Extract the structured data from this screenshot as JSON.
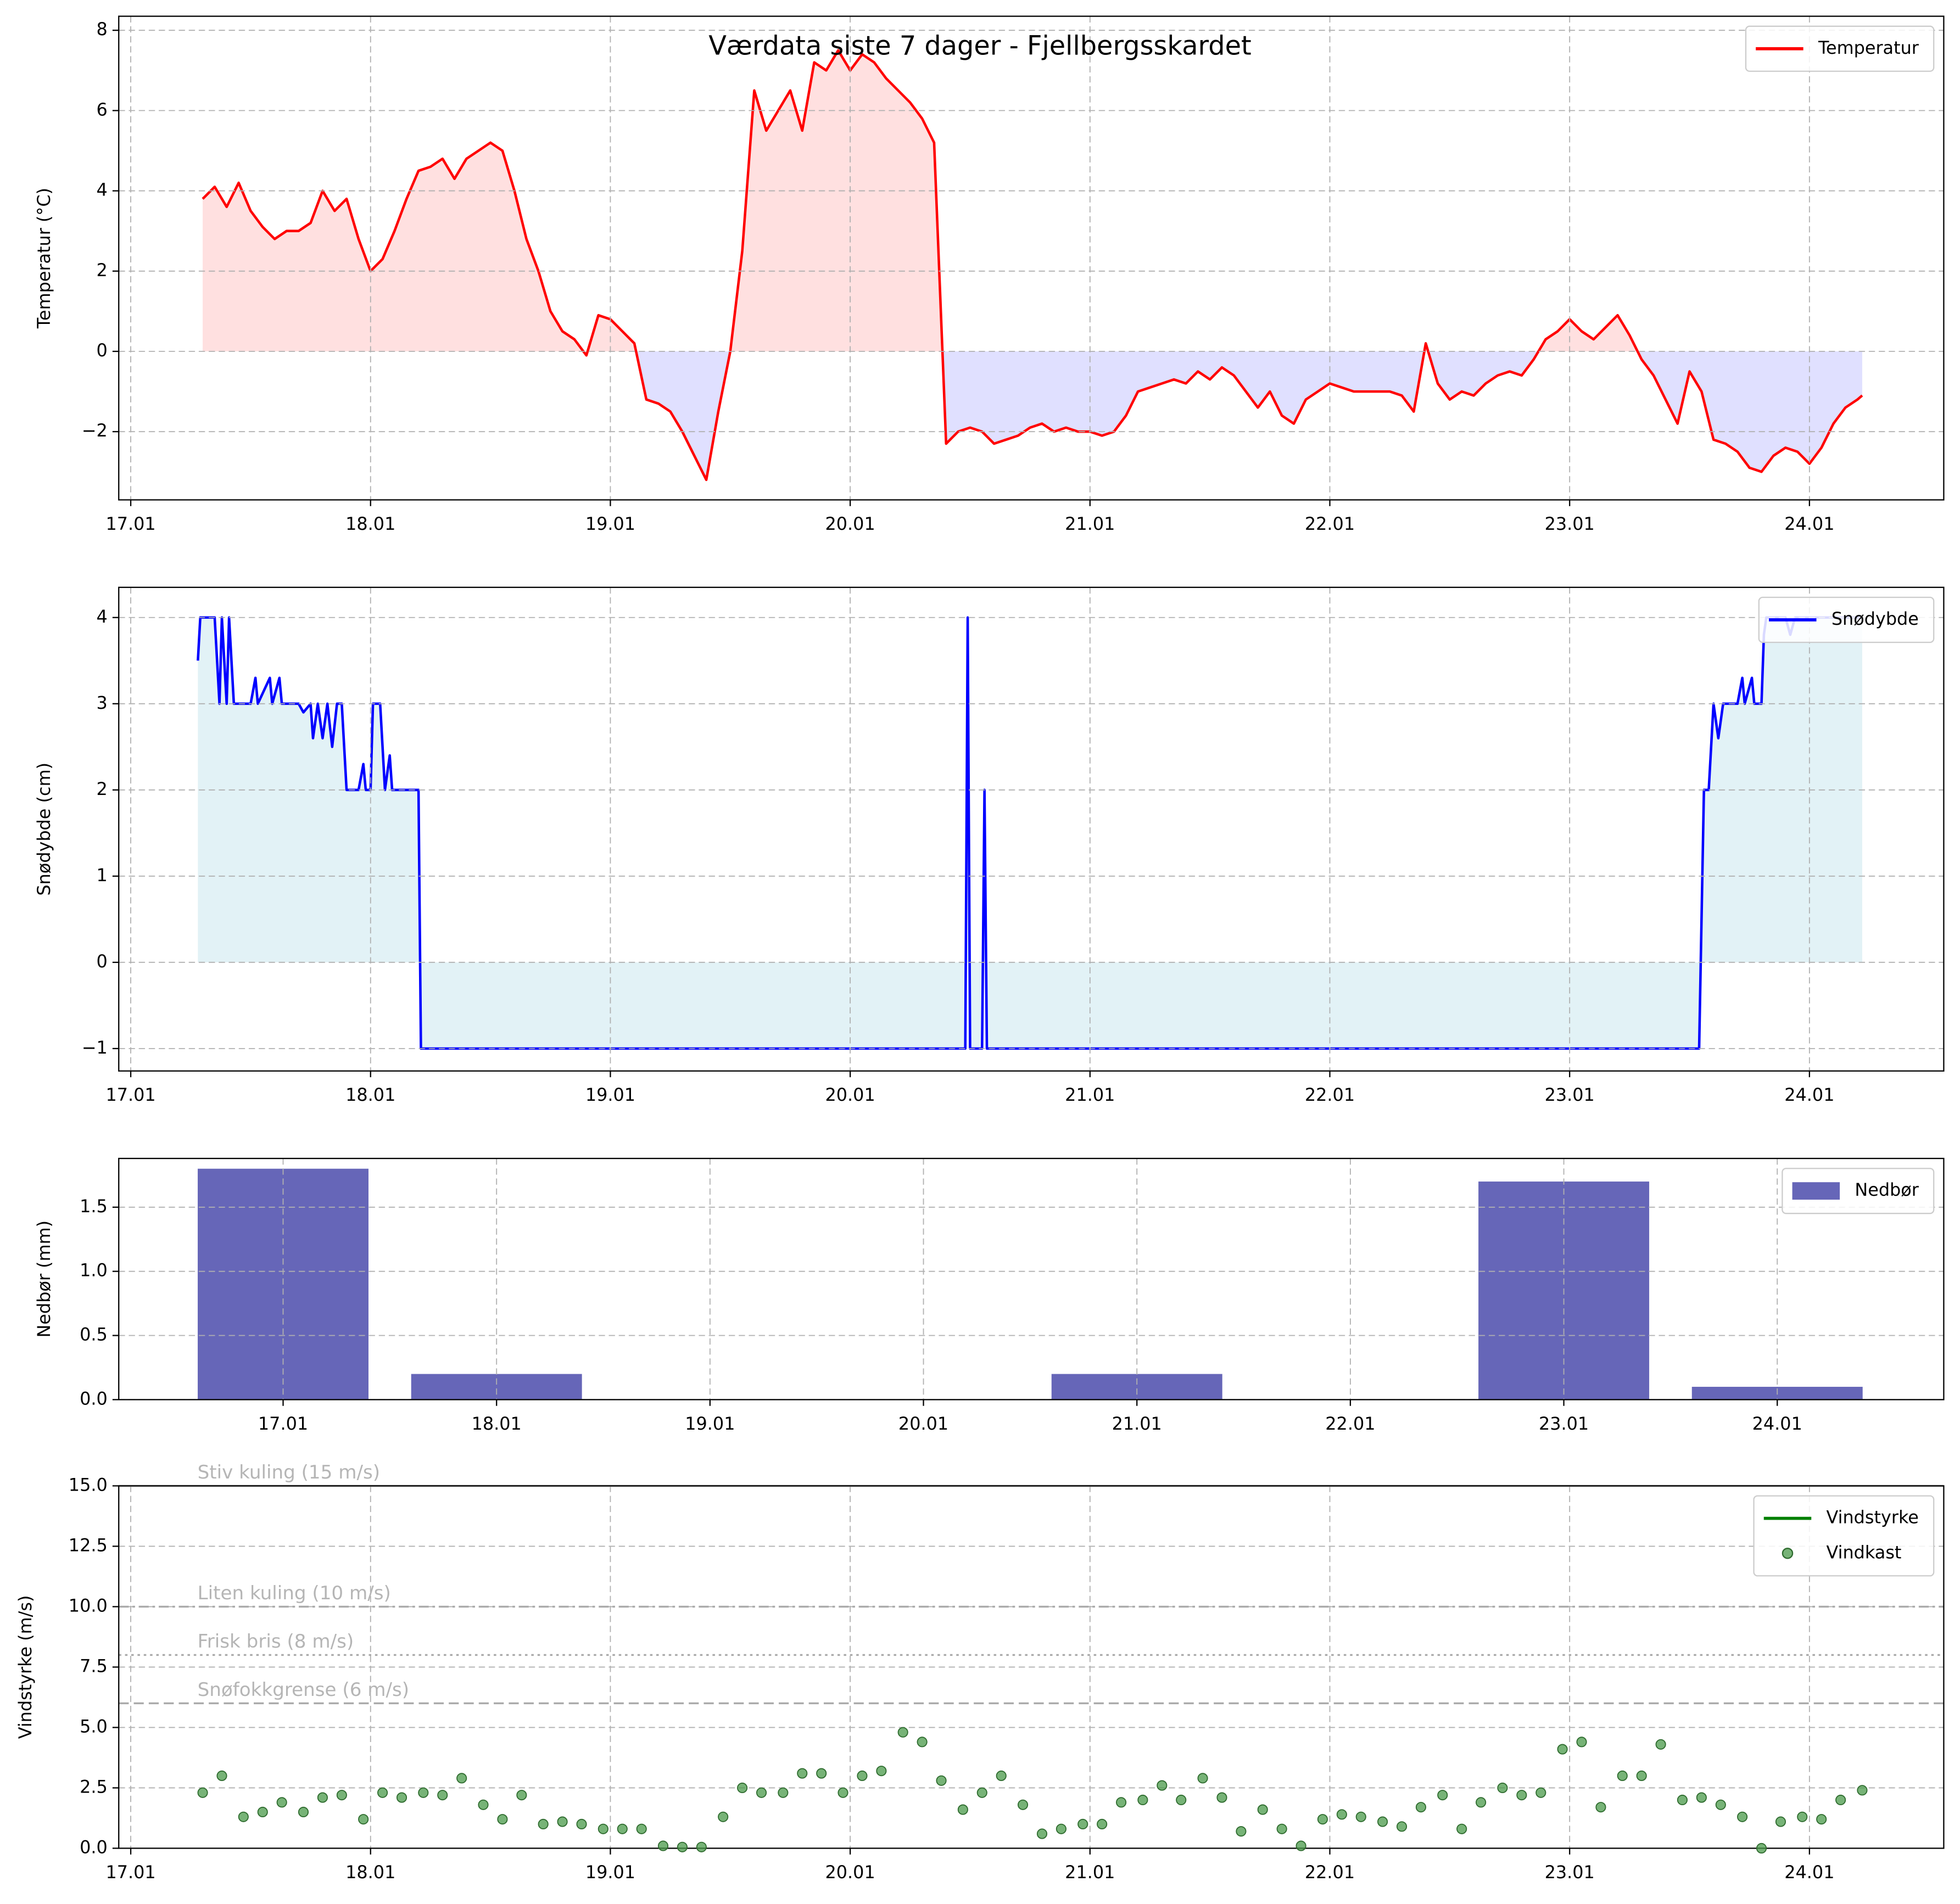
{
  "title": "Værdata siste 7 dager - Fjellbergsskardet",
  "chart_data": [
    {
      "type": "line",
      "ylabel": "Temperatur (°C)",
      "grid": true,
      "legend": "upper right",
      "fill_above_color": "#ffe0e0",
      "fill_below_color": "#e0e0ff",
      "xlim": [
        16.95,
        24.56
      ],
      "ylim": [
        -3.7,
        8.35
      ],
      "xticks": [
        {
          "value": 17,
          "label": "17.01"
        },
        {
          "value": 18,
          "label": "18.01"
        },
        {
          "value": 19,
          "label": "19.01"
        },
        {
          "value": 20,
          "label": "20.01"
        },
        {
          "value": 21,
          "label": "21.01"
        },
        {
          "value": 22,
          "label": "22.01"
        },
        {
          "value": 23,
          "label": "23.01"
        },
        {
          "value": 24,
          "label": "24.01"
        }
      ],
      "yticks": [
        {
          "value": -2,
          "label": "−2"
        },
        0,
        2,
        4,
        6,
        8
      ],
      "x": [
        17.3,
        17.35,
        17.4,
        17.45,
        17.5,
        17.55,
        17.6,
        17.65,
        17.7,
        17.75,
        17.8,
        17.85,
        17.9,
        17.95,
        18,
        18.05,
        18.1,
        18.15,
        18.2,
        18.25,
        18.3,
        18.35,
        18.4,
        18.45,
        18.5,
        18.55,
        18.6,
        18.65,
        18.7,
        18.75,
        18.8,
        18.85,
        18.9,
        18.95,
        19,
        19.05,
        19.1,
        19.15,
        19.2,
        19.25,
        19.3,
        19.35,
        19.4,
        19.45,
        19.5,
        19.55,
        19.6,
        19.65,
        19.7,
        19.75,
        19.8,
        19.85,
        19.9,
        19.95,
        20,
        20.05,
        20.1,
        20.15,
        20.2,
        20.25,
        20.3,
        20.35,
        20.4,
        20.45,
        20.5,
        20.55,
        20.6,
        20.65,
        20.7,
        20.75,
        20.8,
        20.85,
        20.9,
        20.95,
        21,
        21.05,
        21.1,
        21.15,
        21.2,
        21.25,
        21.3,
        21.35,
        21.4,
        21.45,
        21.5,
        21.55,
        21.6,
        21.65,
        21.7,
        21.75,
        21.8,
        21.85,
        21.9,
        21.95,
        22,
        22.05,
        22.1,
        22.15,
        22.2,
        22.25,
        22.3,
        22.35,
        22.4,
        22.45,
        22.5,
        22.55,
        22.6,
        22.65,
        22.7,
        22.75,
        22.8,
        22.85,
        22.9,
        22.95,
        23,
        23.05,
        23.1,
        23.15,
        23.2,
        23.25,
        23.3,
        23.35,
        23.4,
        23.45,
        23.5,
        23.55,
        23.6,
        23.65,
        23.7,
        23.75,
        23.8,
        23.85,
        23.9,
        23.95,
        24,
        24.05,
        24.1,
        24.15,
        24.2,
        24.22
      ],
      "series": [
        {
          "name": "Temperatur",
          "color": "#ff0000",
          "values": [
            3.8,
            4.1,
            3.6,
            4.2,
            3.5,
            3.1,
            2.8,
            3.0,
            3.0,
            3.2,
            4.0,
            3.5,
            3.8,
            2.8,
            2.0,
            2.3,
            3.0,
            3.8,
            4.5,
            4.6,
            4.8,
            4.3,
            4.8,
            5.0,
            5.2,
            5.0,
            4.0,
            2.8,
            2.0,
            1.0,
            0.5,
            0.3,
            -0.1,
            0.9,
            0.8,
            0.5,
            0.2,
            -1.2,
            -1.3,
            -1.5,
            -2.0,
            -2.6,
            -3.2,
            -1.5,
            0.0,
            2.5,
            6.5,
            5.5,
            6.0,
            6.5,
            5.5,
            7.2,
            7.0,
            7.5,
            7.0,
            7.4,
            7.2,
            6.8,
            6.5,
            6.2,
            5.8,
            5.2,
            -2.3,
            -2.0,
            -1.9,
            -2.0,
            -2.3,
            -2.2,
            -2.1,
            -1.9,
            -1.8,
            -2.0,
            -1.9,
            -2.0,
            -2.0,
            -2.1,
            -2.0,
            -1.6,
            -1.0,
            -0.9,
            -0.8,
            -0.7,
            -0.8,
            -0.5,
            -0.7,
            -0.4,
            -0.6,
            -1.0,
            -1.4,
            -1.0,
            -1.6,
            -1.8,
            -1.2,
            -1.0,
            -0.8,
            -0.9,
            -1.0,
            -1.0,
            -1.0,
            -1.0,
            -1.1,
            -1.5,
            0.2,
            -0.8,
            -1.2,
            -1.0,
            -1.1,
            -0.8,
            -0.6,
            -0.5,
            -0.6,
            -0.2,
            0.3,
            0.5,
            0.8,
            0.5,
            0.3,
            0.6,
            0.9,
            0.4,
            -0.2,
            -0.6,
            -1.2,
            -1.8,
            -0.5,
            -1.0,
            -2.2,
            -2.3,
            -2.5,
            -2.9,
            -3.0,
            -2.6,
            -2.4,
            -2.5,
            -2.8,
            -2.4,
            -1.8,
            -1.4,
            -1.2,
            -1.1
          ]
        }
      ]
    },
    {
      "type": "line",
      "ylabel": "Snødybde (cm)",
      "grid": true,
      "legend": "upper right",
      "fill_color": "#e2f2f6",
      "xlim": [
        16.95,
        24.56
      ],
      "ylim": [
        -1.26,
        4.35
      ],
      "xticks": [
        {
          "value": 17,
          "label": "17.01"
        },
        {
          "value": 18,
          "label": "18.01"
        },
        {
          "value": 19,
          "label": "19.01"
        },
        {
          "value": 20,
          "label": "20.01"
        },
        {
          "value": 21,
          "label": "21.01"
        },
        {
          "value": 22,
          "label": "22.01"
        },
        {
          "value": 23,
          "label": "23.01"
        },
        {
          "value": 24,
          "label": "24.01"
        }
      ],
      "yticks": [
        {
          "value": -1,
          "label": "−1"
        },
        0,
        1,
        2,
        3,
        4
      ],
      "x": [
        17.28,
        17.29,
        17.35,
        17.37,
        17.38,
        17.4,
        17.41,
        17.43,
        17.5,
        17.52,
        17.53,
        17.58,
        17.59,
        17.62,
        17.63,
        17.7,
        17.72,
        17.75,
        17.76,
        17.78,
        17.8,
        17.82,
        17.84,
        17.86,
        17.88,
        17.9,
        17.95,
        17.97,
        17.98,
        18.0,
        18.01,
        18.04,
        18.05,
        18.06,
        18.08,
        18.09,
        18.2,
        18.21,
        20.48,
        20.49,
        20.5,
        20.55,
        20.56,
        20.57,
        23.54,
        23.56,
        23.58,
        23.6,
        23.62,
        23.64,
        23.7,
        23.72,
        23.73,
        23.76,
        23.77,
        23.8,
        23.81,
        23.82,
        23.9,
        23.92,
        23.94,
        24.22
      ],
      "series": [
        {
          "name": "Snødybde",
          "color": "#0000ff",
          "values": [
            3.5,
            4,
            4,
            3,
            4,
            3,
            4,
            3,
            3,
            3.3,
            3,
            3.3,
            3,
            3.3,
            3,
            3,
            2.9,
            3,
            2.6,
            3,
            2.6,
            3,
            2.5,
            3,
            3,
            2,
            2,
            2.3,
            2,
            2,
            3,
            3,
            2.5,
            2,
            2.4,
            2,
            2,
            -1,
            -1,
            4,
            -1,
            -1,
            2,
            -1,
            -1,
            2,
            2,
            3,
            2.6,
            3,
            3,
            3.3,
            3,
            3.3,
            3,
            3,
            3.8,
            4,
            4,
            3.8,
            4,
            4
          ]
        }
      ]
    },
    {
      "type": "bar",
      "ylabel": "Nedbør (mm)",
      "grid": true,
      "legend": "upper right",
      "xlim": [
        16.23,
        24.78
      ],
      "ylim": [
        0,
        1.88
      ],
      "xticks": [
        {
          "value": 17,
          "label": "17.01"
        },
        {
          "value": 18,
          "label": "18.01"
        },
        {
          "value": 19,
          "label": "19.01"
        },
        {
          "value": 20,
          "label": "20.01"
        },
        {
          "value": 21,
          "label": "21.01"
        },
        {
          "value": 22,
          "label": "22.01"
        },
        {
          "value": 23,
          "label": "23.01"
        },
        {
          "value": 24,
          "label": "24.01"
        }
      ],
      "yticks": [
        {
          "value": 0,
          "label": "0.0"
        },
        0.5,
        {
          "value": 1,
          "label": "1.0"
        },
        1.5
      ],
      "x": [
        17,
        18,
        19,
        20,
        21,
        22,
        23,
        24
      ],
      "series": [
        {
          "name": "Nedbør",
          "color": "#6666b8",
          "values": [
            1.8,
            0.2,
            0,
            0,
            0.2,
            0,
            1.7,
            0.1
          ]
        }
      ]
    },
    {
      "type": "scatter",
      "ylabel": "Vindstyrke (m/s)",
      "grid": true,
      "legend": "upper right",
      "xlim": [
        16.95,
        24.56
      ],
      "ylim": [
        0,
        15
      ],
      "xticks": [
        {
          "value": 17,
          "label": "17.01"
        },
        {
          "value": 18,
          "label": "18.01"
        },
        {
          "value": 19,
          "label": "19.01"
        },
        {
          "value": 20,
          "label": "20.01"
        },
        {
          "value": 21,
          "label": "21.01"
        },
        {
          "value": 22,
          "label": "22.01"
        },
        {
          "value": 23,
          "label": "23.01"
        },
        {
          "value": 24,
          "label": "24.01"
        }
      ],
      "yticks": [
        {
          "value": 0,
          "label": "0.0"
        },
        2.5,
        {
          "value": 5,
          "label": "5.0"
        },
        7.5,
        {
          "value": 10,
          "label": "10.0"
        },
        12.5,
        {
          "value": 15,
          "label": "15.0"
        }
      ],
      "hlines": [
        {
          "value": 15,
          "label": "Stiv kuling (15 m/s)",
          "style": "solid"
        },
        {
          "value": 10,
          "label": "Liten kuling (10 m/s)",
          "style": "dashdot"
        },
        {
          "value": 8,
          "label": "Frisk bris (8 m/s)",
          "style": "dotted"
        },
        {
          "value": 6,
          "label": "Snøfokkgrense (6 m/s)",
          "style": "dashed"
        }
      ],
      "x": [
        17.3,
        17.38,
        17.47,
        17.55,
        17.63,
        17.72,
        17.8,
        17.88,
        17.97,
        18.05,
        18.13,
        18.22,
        18.3,
        18.38,
        18.47,
        18.55,
        18.63,
        18.72,
        18.8,
        18.88,
        18.97,
        19.05,
        19.13,
        19.22,
        19.3,
        19.38,
        19.47,
        19.55,
        19.63,
        19.72,
        19.8,
        19.88,
        19.97,
        20.05,
        20.13,
        20.22,
        20.3,
        20.38,
        20.47,
        20.55,
        20.63,
        20.72,
        20.8,
        20.88,
        20.97,
        21.05,
        21.13,
        21.22,
        21.3,
        21.38,
        21.47,
        21.55,
        21.63,
        21.72,
        21.8,
        21.88,
        21.97,
        22.05,
        22.13,
        22.22,
        22.3,
        22.38,
        22.47,
        22.55,
        22.63,
        22.72,
        22.8,
        22.88,
        22.97,
        23.05,
        23.13,
        23.22,
        23.3,
        23.38,
        23.47,
        23.55,
        23.63,
        23.72,
        23.8,
        23.88,
        23.97,
        24.05,
        24.13,
        24.22
      ],
      "series": [
        {
          "name": "Vindstyrke",
          "color": "#008000",
          "type": "line",
          "values": [
            null,
            null,
            null,
            null,
            null,
            null,
            null,
            null,
            null,
            null,
            null,
            null,
            null,
            null,
            null,
            null,
            null,
            null,
            null,
            null,
            null,
            null,
            null,
            null,
            null,
            null,
            null,
            null,
            null,
            null,
            null,
            null,
            null,
            null,
            null,
            null,
            null,
            null,
            null,
            null,
            null,
            null,
            null,
            null,
            null,
            null,
            null,
            null,
            null,
            null,
            null,
            null,
            null,
            null,
            null,
            null,
            null,
            null,
            null,
            null,
            null,
            null,
            null,
            null,
            null,
            null,
            null,
            null,
            null,
            null,
            null,
            null,
            null,
            null,
            null,
            null,
            null,
            null,
            null,
            null,
            null,
            null,
            null,
            null
          ]
        },
        {
          "name": "Vindkast",
          "color": "#4a9a4a",
          "type": "scatter",
          "values": [
            2.3,
            3.0,
            1.3,
            1.5,
            1.9,
            1.5,
            2.1,
            2.2,
            1.2,
            2.3,
            2.1,
            2.3,
            2.2,
            2.9,
            1.8,
            1.2,
            2.2,
            1.0,
            1.1,
            1.0,
            0.8,
            0.8,
            0.8,
            0.1,
            0.05,
            0.05,
            1.3,
            2.5,
            2.3,
            2.3,
            3.1,
            3.1,
            2.3,
            3.0,
            3.2,
            4.8,
            4.4,
            2.8,
            1.6,
            2.3,
            3.0,
            1.8,
            0.6,
            0.8,
            1.0,
            1.0,
            1.9,
            2.0,
            2.6,
            2.0,
            2.9,
            2.1,
            0.7,
            1.6,
            0.8,
            0.1,
            1.2,
            1.4,
            1.3,
            1.1,
            0.9,
            1.7,
            2.2,
            0.8,
            1.9,
            2.5,
            2.2,
            2.3,
            4.1,
            4.4,
            1.7,
            3.0,
            3.0,
            4.3,
            2.0,
            2.1,
            1.8,
            1.3,
            0.0,
            1.1,
            1.3,
            1.2,
            2.0,
            2.4
          ]
        }
      ]
    }
  ]
}
